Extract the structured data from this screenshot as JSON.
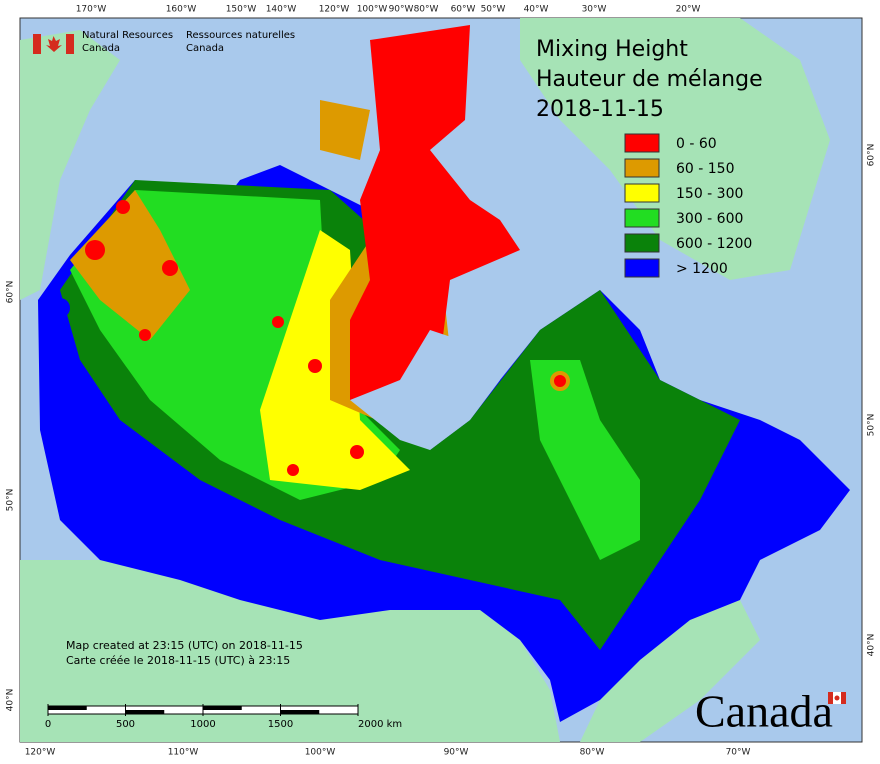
{
  "header": {
    "en_line1": "Natural Resources",
    "en_line2": "Canada",
    "fr_line1": "Ressources naturelles",
    "fr_line2": "Canada"
  },
  "title": {
    "line1": "Mixing Height",
    "line2": "Hauteur de mélange",
    "date": "2018-11-15"
  },
  "legend": [
    {
      "label": "0 - 60",
      "color": "#ff0000"
    },
    {
      "label": "60 - 150",
      "color": "#dd9a00"
    },
    {
      "label": "150 - 300",
      "color": "#ffff00"
    },
    {
      "label": "300 - 600",
      "color": "#22dd22"
    },
    {
      "label": "600 - 1200",
      "color": "#0a820a"
    },
    {
      "label": "> 1200",
      "color": "#0000ff"
    }
  ],
  "graticule": {
    "top": [
      "170°W",
      "160°W",
      "150°W",
      "140°W",
      "120°W",
      "100°W",
      "90°W",
      "80°W",
      "60°W",
      "50°W",
      "40°W",
      "30°W",
      "20°W"
    ],
    "bottom": [
      "120°W",
      "110°W",
      "100°W",
      "90°W",
      "80°W",
      "70°W"
    ],
    "left": [
      "60°N",
      "50°N",
      "40°N"
    ],
    "right": [
      "60°N",
      "50°N",
      "40°N"
    ]
  },
  "notes": [
    "Map created at 23:15 (UTC) on 2018-11-15",
    "Carte créée le 2018-11-15 (UTC) à 23:15"
  ],
  "scale_bar": [
    "0",
    "500",
    "1000",
    "1500",
    "2000 km"
  ],
  "wordmark": "Canada"
}
